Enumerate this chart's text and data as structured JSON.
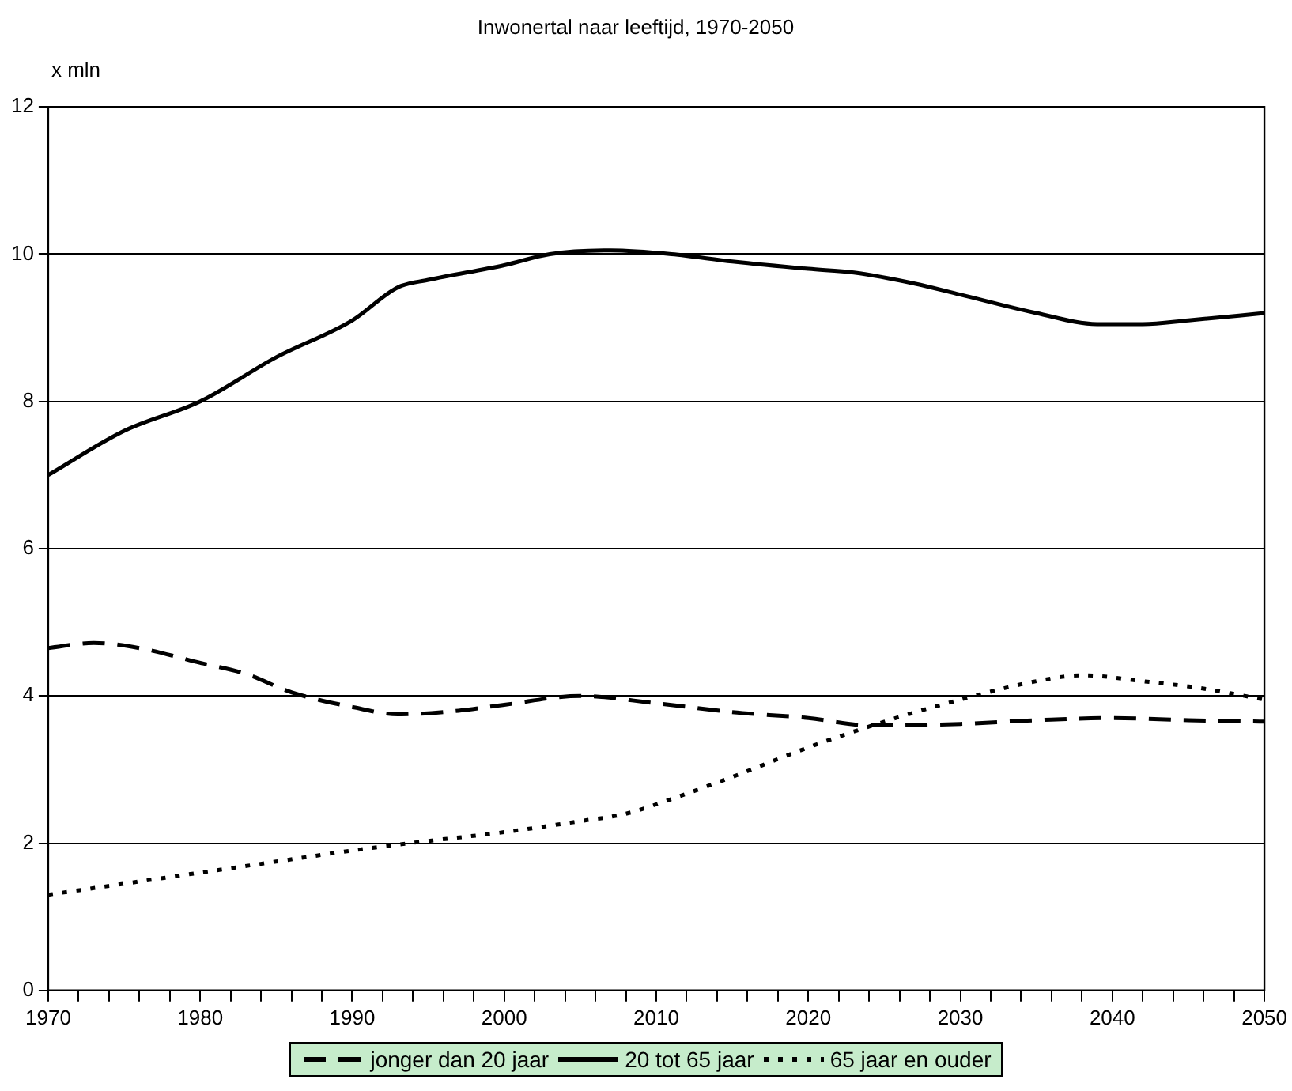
{
  "chart_data": {
    "type": "line",
    "title": "Inwonertal naar leeftijd, 1970-2050",
    "ylabel": "x mln",
    "series": [
      {
        "name": "jonger dan 20 jaar",
        "color": "#000000",
        "line_style": "dashed",
        "x": [
          1970,
          1973,
          1976,
          1980,
          1983,
          1986,
          1990,
          1993,
          1997,
          2000,
          2005,
          2010,
          2015,
          2020,
          2024,
          2030,
          2035,
          2040,
          2045,
          2050
        ],
        "values": [
          4.65,
          4.72,
          4.65,
          4.45,
          4.3,
          4.05,
          3.85,
          3.75,
          3.8,
          3.88,
          4.0,
          3.9,
          3.78,
          3.7,
          3.6,
          3.62,
          3.67,
          3.7,
          3.67,
          3.65
        ]
      },
      {
        "name": "20 tot 65 jaar",
        "color": "#000000",
        "line_style": "solid",
        "x": [
          1970,
          1975,
          1980,
          1985,
          1990,
          1993,
          1995,
          2000,
          2003,
          2007,
          2011,
          2015,
          2020,
          2023,
          2027,
          2030,
          2035,
          2039,
          2042,
          2045,
          2050
        ],
        "values": [
          7.0,
          7.6,
          8.0,
          8.6,
          9.1,
          9.55,
          9.65,
          9.85,
          10.0,
          10.05,
          10.0,
          9.9,
          9.8,
          9.75,
          9.6,
          9.45,
          9.2,
          9.05,
          9.05,
          9.1,
          9.2
        ]
      },
      {
        "name": "65 jaar en ouder",
        "color": "#000000",
        "line_style": "dotted",
        "x": [
          1970,
          1975,
          1980,
          1985,
          1990,
          1995,
          2000,
          2005,
          2008,
          2011,
          2015,
          2020,
          2025,
          2030,
          2035,
          2038,
          2042,
          2046,
          2050
        ],
        "values": [
          1.3,
          1.45,
          1.6,
          1.75,
          1.9,
          2.03,
          2.15,
          2.3,
          2.4,
          2.6,
          2.9,
          3.3,
          3.65,
          3.95,
          4.2,
          4.28,
          4.2,
          4.1,
          3.95
        ]
      }
    ],
    "xlim": [
      1970,
      2050
    ],
    "xticks": [
      1970,
      {
        "value": 1972,
        "label": null
      },
      {
        "value": 1974,
        "label": null
      },
      {
        "value": 1976,
        "label": null
      },
      {
        "value": 1978,
        "label": null
      },
      1980,
      {
        "value": 1982,
        "label": null
      },
      {
        "value": 1984,
        "label": null
      },
      {
        "value": 1986,
        "label": null
      },
      {
        "value": 1988,
        "label": null
      },
      1990,
      {
        "value": 1992,
        "label": null
      },
      {
        "value": 1994,
        "label": null
      },
      {
        "value": 1996,
        "label": null
      },
      {
        "value": 1998,
        "label": null
      },
      2000,
      {
        "value": 2002,
        "label": null
      },
      {
        "value": 2004,
        "label": null
      },
      {
        "value": 2006,
        "label": null
      },
      {
        "value": 2008,
        "label": null
      },
      2010,
      {
        "value": 2012,
        "label": null
      },
      {
        "value": 2014,
        "label": null
      },
      {
        "value": 2016,
        "label": null
      },
      {
        "value": 2018,
        "label": null
      },
      2020,
      {
        "value": 2022,
        "label": null
      },
      {
        "value": 2024,
        "label": null
      },
      {
        "value": 2026,
        "label": null
      },
      {
        "value": 2028,
        "label": null
      },
      2030,
      {
        "value": 2032,
        "label": null
      },
      {
        "value": 2034,
        "label": null
      },
      {
        "value": 2036,
        "label": null
      },
      {
        "value": 2038,
        "label": null
      },
      2040,
      {
        "value": 2042,
        "label": null
      },
      {
        "value": 2044,
        "label": null
      },
      {
        "value": 2046,
        "label": null
      },
      {
        "value": 2048,
        "label": null
      },
      2050
    ],
    "ylim": [
      0,
      12
    ],
    "yticks": [
      0,
      2,
      4,
      6,
      8,
      10,
      12
    ],
    "grid": "y",
    "legend": "bottom",
    "marker": "none"
  }
}
